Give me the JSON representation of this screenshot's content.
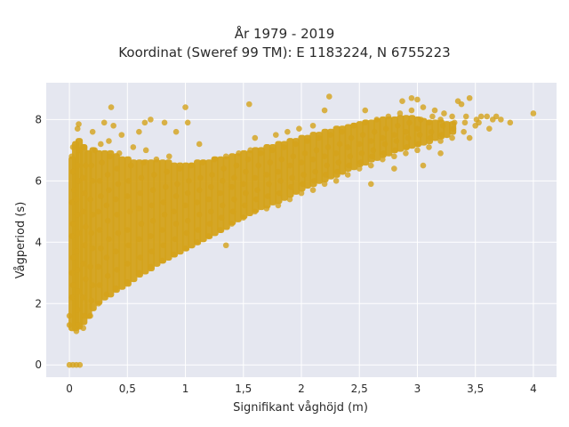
{
  "chart_data": {
    "type": "scatter",
    "title": "År 1979 - 2019",
    "subtitle": "Koordinat (Sweref 99 TM): E 1183224, N 6755223",
    "xlabel": "Signifikant våghöjd (m)",
    "ylabel": "Vågperiod (s)",
    "xlim": [
      -0.2,
      4.2
    ],
    "ylim": [
      -0.4,
      9.2
    ],
    "xticks": [
      0,
      0.5,
      1,
      1.5,
      2,
      2.5,
      3,
      3.5,
      4
    ],
    "xtick_labels": [
      "0",
      "0,5",
      "1",
      "1,5",
      "2",
      "2,5",
      "3",
      "3,5",
      "4"
    ],
    "yticks": [
      0,
      2,
      4,
      6,
      8
    ],
    "ytick_labels": [
      "0",
      "2",
      "4",
      "6",
      "8"
    ],
    "grid": true,
    "point_color": "#d4a21a",
    "plot_background": "#e5e7f0",
    "points": [
      [
        0.0,
        0.0
      ],
      [
        0.03,
        0.0
      ],
      [
        0.06,
        0.0
      ],
      [
        0.09,
        0.0
      ],
      [
        0.0,
        1.3
      ],
      [
        0.0,
        1.6
      ],
      [
        0.02,
        2.2
      ],
      [
        0.03,
        2.6
      ],
      [
        0.02,
        3.0
      ],
      [
        0.03,
        3.5
      ],
      [
        0.02,
        4.2
      ],
      [
        0.03,
        4.6
      ],
      [
        0.02,
        5.3
      ],
      [
        0.04,
        5.7
      ],
      [
        0.03,
        6.3
      ],
      [
        0.02,
        6.8
      ],
      [
        0.03,
        7.1
      ],
      [
        0.06,
        1.1
      ],
      [
        0.08,
        1.3
      ],
      [
        0.07,
        1.8
      ],
      [
        0.08,
        2.4
      ],
      [
        0.07,
        3.1
      ],
      [
        0.06,
        3.7
      ],
      [
        0.08,
        4.3
      ],
      [
        0.07,
        4.9
      ],
      [
        0.06,
        5.4
      ],
      [
        0.08,
        6.0
      ],
      [
        0.07,
        6.5
      ],
      [
        0.09,
        7.0
      ],
      [
        0.07,
        7.7
      ],
      [
        0.08,
        7.85
      ],
      [
        0.12,
        1.2
      ],
      [
        0.13,
        1.6
      ],
      [
        0.12,
        2.2
      ],
      [
        0.14,
        2.8
      ],
      [
        0.12,
        3.3
      ],
      [
        0.13,
        3.9
      ],
      [
        0.14,
        4.5
      ],
      [
        0.12,
        5.0
      ],
      [
        0.13,
        5.6
      ],
      [
        0.12,
        6.1
      ],
      [
        0.14,
        6.5
      ],
      [
        0.13,
        7.1
      ],
      [
        0.18,
        1.6
      ],
      [
        0.19,
        2.1
      ],
      [
        0.2,
        2.6
      ],
      [
        0.18,
        3.2
      ],
      [
        0.2,
        3.8
      ],
      [
        0.19,
        4.3
      ],
      [
        0.2,
        4.9
      ],
      [
        0.18,
        5.4
      ],
      [
        0.2,
        6.0
      ],
      [
        0.19,
        6.5
      ],
      [
        0.22,
        7.0
      ],
      [
        0.2,
        7.6
      ],
      [
        0.25,
        2.0
      ],
      [
        0.26,
        2.6
      ],
      [
        0.25,
        3.2
      ],
      [
        0.27,
        3.8
      ],
      [
        0.26,
        4.4
      ],
      [
        0.25,
        5.0
      ],
      [
        0.27,
        5.5
      ],
      [
        0.26,
        6.0
      ],
      [
        0.28,
        6.6
      ],
      [
        0.27,
        7.2
      ],
      [
        0.3,
        7.9
      ],
      [
        0.36,
        8.4
      ],
      [
        0.32,
        2.3
      ],
      [
        0.33,
        2.9
      ],
      [
        0.32,
        3.5
      ],
      [
        0.34,
        4.1
      ],
      [
        0.33,
        4.7
      ],
      [
        0.32,
        5.2
      ],
      [
        0.34,
        5.7
      ],
      [
        0.33,
        6.2
      ],
      [
        0.35,
        6.8
      ],
      [
        0.34,
        7.3
      ],
      [
        0.38,
        7.8
      ],
      [
        0.4,
        2.5
      ],
      [
        0.41,
        3.1
      ],
      [
        0.4,
        3.7
      ],
      [
        0.42,
        4.3
      ],
      [
        0.41,
        4.9
      ],
      [
        0.4,
        5.4
      ],
      [
        0.42,
        5.9
      ],
      [
        0.41,
        6.4
      ],
      [
        0.43,
        6.9
      ],
      [
        0.45,
        7.5
      ],
      [
        0.5,
        2.7
      ],
      [
        0.5,
        3.3
      ],
      [
        0.51,
        3.9
      ],
      [
        0.5,
        4.4
      ],
      [
        0.52,
        5.0
      ],
      [
        0.5,
        5.5
      ],
      [
        0.51,
        6.0
      ],
      [
        0.53,
        6.5
      ],
      [
        0.55,
        7.1
      ],
      [
        0.6,
        7.6
      ],
      [
        0.65,
        7.9
      ],
      [
        0.6,
        3.0
      ],
      [
        0.61,
        3.5
      ],
      [
        0.6,
        4.1
      ],
      [
        0.62,
        4.6
      ],
      [
        0.6,
        5.1
      ],
      [
        0.61,
        5.6
      ],
      [
        0.62,
        6.1
      ],
      [
        0.64,
        6.6
      ],
      [
        0.66,
        7.0
      ],
      [
        0.7,
        3.2
      ],
      [
        0.71,
        3.7
      ],
      [
        0.7,
        4.2
      ],
      [
        0.72,
        4.7
      ],
      [
        0.71,
        5.2
      ],
      [
        0.72,
        5.7
      ],
      [
        0.73,
        6.2
      ],
      [
        0.75,
        6.7
      ],
      [
        0.7,
        8.0
      ],
      [
        0.82,
        7.9
      ],
      [
        0.92,
        7.6
      ],
      [
        0.8,
        3.4
      ],
      [
        0.81,
        3.9
      ],
      [
        0.8,
        4.4
      ],
      [
        0.82,
        4.9
      ],
      [
        0.81,
        5.3
      ],
      [
        0.83,
        5.8
      ],
      [
        0.84,
        6.3
      ],
      [
        0.86,
        6.8
      ],
      [
        0.9,
        3.6
      ],
      [
        0.91,
        4.1
      ],
      [
        0.92,
        4.6
      ],
      [
        0.9,
        5.0
      ],
      [
        0.92,
        5.5
      ],
      [
        0.93,
        5.9
      ],
      [
        0.95,
        6.4
      ],
      [
        1.0,
        3.8
      ],
      [
        1.01,
        4.3
      ],
      [
        1.02,
        4.7
      ],
      [
        1.0,
        5.2
      ],
      [
        1.02,
        5.6
      ],
      [
        1.03,
        6.0
      ],
      [
        1.05,
        6.5
      ],
      [
        1.0,
        8.4
      ],
      [
        1.02,
        7.9
      ],
      [
        1.1,
        4.0
      ],
      [
        1.11,
        4.4
      ],
      [
        1.12,
        4.9
      ],
      [
        1.1,
        5.3
      ],
      [
        1.12,
        5.7
      ],
      [
        1.13,
        6.1
      ],
      [
        1.15,
        6.6
      ],
      [
        1.12,
        7.2
      ],
      [
        1.2,
        4.2
      ],
      [
        1.21,
        4.6
      ],
      [
        1.22,
        5.0
      ],
      [
        1.2,
        5.4
      ],
      [
        1.22,
        5.8
      ],
      [
        1.23,
        6.2
      ],
      [
        1.25,
        6.7
      ],
      [
        1.35,
        3.9
      ],
      [
        1.3,
        4.4
      ],
      [
        1.31,
        4.8
      ],
      [
        1.32,
        5.2
      ],
      [
        1.3,
        5.6
      ],
      [
        1.32,
        6.0
      ],
      [
        1.33,
        6.4
      ],
      [
        1.35,
        6.8
      ],
      [
        1.4,
        4.6
      ],
      [
        1.41,
        5.0
      ],
      [
        1.42,
        5.4
      ],
      [
        1.4,
        5.8
      ],
      [
        1.42,
        6.1
      ],
      [
        1.44,
        6.5
      ],
      [
        1.46,
        6.9
      ],
      [
        1.5,
        4.8
      ],
      [
        1.51,
        5.2
      ],
      [
        1.52,
        5.6
      ],
      [
        1.5,
        5.9
      ],
      [
        1.52,
        6.3
      ],
      [
        1.54,
        6.7
      ],
      [
        1.56,
        7.0
      ],
      [
        1.55,
        8.5
      ],
      [
        1.6,
        7.4
      ],
      [
        1.6,
        5.0
      ],
      [
        1.61,
        5.4
      ],
      [
        1.62,
        5.7
      ],
      [
        1.6,
        6.1
      ],
      [
        1.63,
        6.5
      ],
      [
        1.65,
        6.9
      ],
      [
        1.7,
        5.1
      ],
      [
        1.71,
        5.5
      ],
      [
        1.72,
        5.9
      ],
      [
        1.7,
        6.2
      ],
      [
        1.73,
        6.6
      ],
      [
        1.75,
        7.0
      ],
      [
        1.78,
        7.5
      ],
      [
        1.8,
        5.2
      ],
      [
        1.81,
        5.6
      ],
      [
        1.82,
        6.0
      ],
      [
        1.8,
        6.3
      ],
      [
        1.83,
        6.7
      ],
      [
        1.85,
        7.1
      ],
      [
        1.88,
        7.6
      ],
      [
        1.9,
        5.4
      ],
      [
        1.91,
        5.8
      ],
      [
        1.92,
        6.1
      ],
      [
        1.9,
        6.5
      ],
      [
        1.93,
        6.8
      ],
      [
        1.95,
        7.2
      ],
      [
        1.98,
        7.7
      ],
      [
        2.0,
        5.6
      ],
      [
        2.01,
        5.9
      ],
      [
        2.02,
        6.2
      ],
      [
        2.0,
        6.6
      ],
      [
        2.03,
        6.9
      ],
      [
        2.05,
        7.3
      ],
      [
        2.1,
        7.8
      ],
      [
        2.2,
        8.3
      ],
      [
        2.1,
        5.7
      ],
      [
        2.11,
        6.0
      ],
      [
        2.12,
        6.3
      ],
      [
        2.1,
        6.7
      ],
      [
        2.13,
        7.0
      ],
      [
        2.15,
        7.4
      ],
      [
        2.2,
        5.9
      ],
      [
        2.21,
        6.2
      ],
      [
        2.22,
        6.5
      ],
      [
        2.2,
        6.8
      ],
      [
        2.23,
        7.1
      ],
      [
        2.25,
        7.5
      ],
      [
        2.24,
        8.75
      ],
      [
        2.3,
        6.0
      ],
      [
        2.31,
        6.3
      ],
      [
        2.32,
        6.6
      ],
      [
        2.3,
        6.9
      ],
      [
        2.33,
        7.2
      ],
      [
        2.35,
        7.6
      ],
      [
        2.4,
        6.2
      ],
      [
        2.41,
        6.5
      ],
      [
        2.42,
        6.8
      ],
      [
        2.4,
        7.1
      ],
      [
        2.43,
        7.4
      ],
      [
        2.45,
        7.8
      ],
      [
        2.5,
        6.4
      ],
      [
        2.51,
        6.6
      ],
      [
        2.52,
        6.9
      ],
      [
        2.5,
        7.2
      ],
      [
        2.53,
        7.5
      ],
      [
        2.55,
        7.9
      ],
      [
        2.55,
        8.3
      ],
      [
        2.6,
        5.9
      ],
      [
        2.6,
        6.5
      ],
      [
        2.61,
        6.8
      ],
      [
        2.62,
        7.0
      ],
      [
        2.6,
        7.3
      ],
      [
        2.63,
        7.6
      ],
      [
        2.65,
        8.0
      ],
      [
        2.7,
        6.7
      ],
      [
        2.71,
        6.9
      ],
      [
        2.72,
        7.2
      ],
      [
        2.7,
        7.4
      ],
      [
        2.73,
        7.7
      ],
      [
        2.75,
        8.1
      ],
      [
        2.8,
        6.4
      ],
      [
        2.8,
        6.8
      ],
      [
        2.81,
        7.0
      ],
      [
        2.82,
        7.3
      ],
      [
        2.8,
        7.5
      ],
      [
        2.83,
        7.8
      ],
      [
        2.85,
        8.2
      ],
      [
        2.87,
        8.6
      ],
      [
        2.9,
        6.9
      ],
      [
        2.91,
        7.1
      ],
      [
        2.92,
        7.4
      ],
      [
        2.9,
        7.6
      ],
      [
        2.93,
        7.9
      ],
      [
        2.95,
        8.3
      ],
      [
        2.95,
        8.7
      ],
      [
        3.0,
        7.0
      ],
      [
        3.01,
        7.2
      ],
      [
        3.02,
        7.5
      ],
      [
        3.0,
        7.7
      ],
      [
        3.03,
        8.0
      ],
      [
        3.05,
        8.4
      ],
      [
        3.0,
        8.65
      ],
      [
        3.05,
        6.5
      ],
      [
        3.1,
        7.1
      ],
      [
        3.11,
        7.4
      ],
      [
        3.12,
        7.6
      ],
      [
        3.1,
        7.9
      ],
      [
        3.13,
        8.1
      ],
      [
        3.15,
        8.3
      ],
      [
        3.2,
        7.3
      ],
      [
        3.21,
        7.5
      ],
      [
        3.22,
        7.8
      ],
      [
        3.2,
        8.0
      ],
      [
        3.23,
        8.2
      ],
      [
        3.2,
        6.9
      ],
      [
        3.3,
        7.4
      ],
      [
        3.31,
        7.7
      ],
      [
        3.32,
        7.9
      ],
      [
        3.3,
        8.1
      ],
      [
        3.35,
        8.6
      ],
      [
        3.4,
        7.6
      ],
      [
        3.41,
        7.9
      ],
      [
        3.42,
        8.1
      ],
      [
        3.38,
        8.5
      ],
      [
        3.45,
        8.7
      ],
      [
        3.45,
        7.4
      ],
      [
        3.5,
        7.8
      ],
      [
        3.51,
        8.0
      ],
      [
        3.55,
        8.1
      ],
      [
        3.53,
        7.9
      ],
      [
        3.6,
        8.1
      ],
      [
        3.65,
        8.0
      ],
      [
        3.62,
        7.7
      ],
      [
        3.72,
        8.0
      ],
      [
        3.8,
        7.9
      ],
      [
        3.68,
        8.1
      ],
      [
        4.0,
        8.2
      ]
    ],
    "bands": [
      [
        0.02,
        1.1,
        6.8
      ],
      [
        0.05,
        1.1,
        7.3
      ],
      [
        0.08,
        1.15,
        7.4
      ],
      [
        0.12,
        1.3,
        7.2
      ],
      [
        0.16,
        1.5,
        7.0
      ],
      [
        0.2,
        1.75,
        7.1
      ],
      [
        0.25,
        1.95,
        7.0
      ],
      [
        0.3,
        2.1,
        7.0
      ],
      [
        0.35,
        2.2,
        7.0
      ],
      [
        0.4,
        2.35,
        6.9
      ],
      [
        0.45,
        2.45,
        6.8
      ],
      [
        0.5,
        2.55,
        6.8
      ],
      [
        0.55,
        2.7,
        6.7
      ],
      [
        0.6,
        2.85,
        6.7
      ],
      [
        0.65,
        2.95,
        6.7
      ],
      [
        0.7,
        3.05,
        6.7
      ],
      [
        0.75,
        3.2,
        6.7
      ],
      [
        0.8,
        3.3,
        6.7
      ],
      [
        0.85,
        3.4,
        6.7
      ],
      [
        0.9,
        3.5,
        6.6
      ],
      [
        0.95,
        3.6,
        6.6
      ],
      [
        1.0,
        3.7,
        6.6
      ],
      [
        1.05,
        3.8,
        6.6
      ],
      [
        1.1,
        3.9,
        6.7
      ],
      [
        1.15,
        4.0,
        6.7
      ],
      [
        1.2,
        4.1,
        6.7
      ],
      [
        1.25,
        4.2,
        6.8
      ],
      [
        1.3,
        4.3,
        6.8
      ],
      [
        1.35,
        4.4,
        6.8
      ],
      [
        1.4,
        4.55,
        6.9
      ],
      [
        1.45,
        4.65,
        6.9
      ],
      [
        1.5,
        4.75,
        7.0
      ],
      [
        1.55,
        4.85,
        7.0
      ],
      [
        1.6,
        4.95,
        7.1
      ],
      [
        1.65,
        5.05,
        7.1
      ],
      [
        1.7,
        5.1,
        7.2
      ],
      [
        1.75,
        5.2,
        7.2
      ],
      [
        1.8,
        5.25,
        7.3
      ],
      [
        1.85,
        5.35,
        7.3
      ],
      [
        1.9,
        5.45,
        7.4
      ],
      [
        1.95,
        5.55,
        7.4
      ],
      [
        2.0,
        5.65,
        7.5
      ],
      [
        2.05,
        5.75,
        7.5
      ],
      [
        2.1,
        5.8,
        7.6
      ],
      [
        2.15,
        5.9,
        7.6
      ],
      [
        2.2,
        5.95,
        7.7
      ],
      [
        2.25,
        6.05,
        7.7
      ],
      [
        2.3,
        6.1,
        7.8
      ],
      [
        2.35,
        6.2,
        7.8
      ],
      [
        2.4,
        6.3,
        7.85
      ],
      [
        2.45,
        6.35,
        7.9
      ],
      [
        2.5,
        6.45,
        7.95
      ],
      [
        2.55,
        6.5,
        8.0
      ],
      [
        2.6,
        6.6,
        8.0
      ],
      [
        2.65,
        6.65,
        8.05
      ],
      [
        2.7,
        6.75,
        8.1
      ],
      [
        2.75,
        6.8,
        8.1
      ],
      [
        2.8,
        6.9,
        8.1
      ],
      [
        2.85,
        6.95,
        8.15
      ],
      [
        2.9,
        7.0,
        8.15
      ],
      [
        2.95,
        7.05,
        8.15
      ],
      [
        3.0,
        7.1,
        8.1
      ],
      [
        3.05,
        7.15,
        8.05
      ],
      [
        3.1,
        7.2,
        8.0
      ],
      [
        3.15,
        7.3,
        8.0
      ],
      [
        3.2,
        7.35,
        8.0
      ],
      [
        3.25,
        7.4,
        7.95
      ],
      [
        3.3,
        7.5,
        7.95
      ]
    ]
  }
}
